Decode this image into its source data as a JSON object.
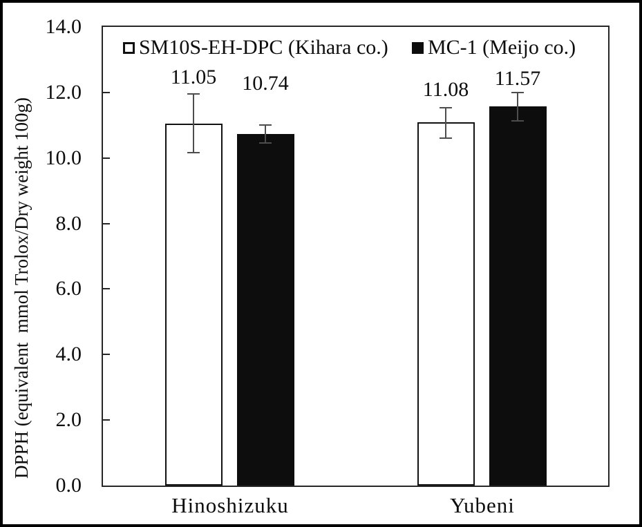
{
  "chart_data": {
    "type": "bar",
    "title": "",
    "categories": [
      "Hinoshizuku",
      "Yubeni"
    ],
    "series": [
      {
        "name": "SM10S-EH-DPC (Kihara co.)",
        "values": [
          11.05,
          11.08
        ],
        "errors": [
          0.9,
          0.46
        ],
        "fill": "#ffffff",
        "stroke": "#111111"
      },
      {
        "name": "MC-1 (Meijo co.)",
        "values": [
          10.74,
          11.57
        ],
        "errors": [
          0.27,
          0.43
        ],
        "fill": "#0d0d0d",
        "stroke": "#0d0d0d"
      }
    ],
    "data_labels": [
      [
        "11.05",
        "11.08"
      ],
      [
        "10.74",
        "11.57"
      ]
    ],
    "ylabel": "DPPH (equivalent  mmol Trolox/Dry weight 100g)",
    "xlabel": "",
    "ylim": [
      0,
      14
    ],
    "ytick_step": 2,
    "yticks": [
      "14.0",
      "12.0",
      "10.0",
      "8.0",
      "6.0",
      "4.0",
      "2.0",
      "0.0"
    ],
    "grid": false,
    "legend_position": "top-inside",
    "error_bar_color": "#4d4d4d",
    "bar_style": "grouped, first series white with black outline, second series solid black"
  },
  "colors": {
    "outer_frame": "#000000",
    "axis": "#262626",
    "text": "#0d0d0d",
    "error_bar": "#4d4d4d"
  }
}
